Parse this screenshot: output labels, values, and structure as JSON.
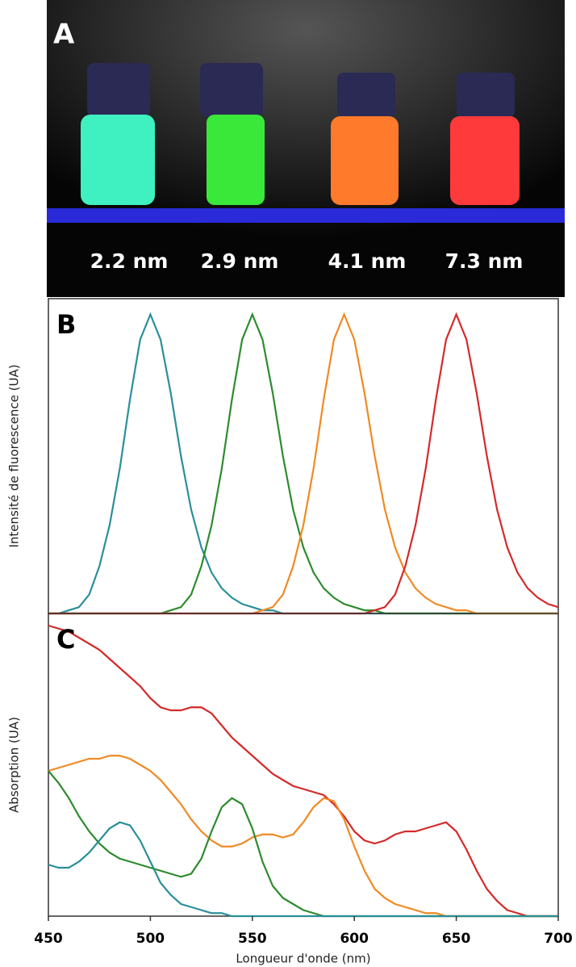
{
  "panel_a": {
    "label": "A",
    "vial_labels": [
      "2.2 nm",
      "2.9 nm",
      "4.1 nm",
      "7.3 nm"
    ]
  },
  "chart_data": [
    {
      "type": "line",
      "panel_label": "B",
      "ylabel": "Intensité de fluorescence (UA)",
      "xlim": [
        450,
        700
      ],
      "ylim": [
        0,
        1
      ],
      "x": [
        450,
        455,
        460,
        465,
        470,
        475,
        480,
        485,
        490,
        495,
        500,
        505,
        510,
        515,
        520,
        525,
        530,
        535,
        540,
        545,
        550,
        555,
        560,
        565,
        570,
        575,
        580,
        585,
        590,
        595,
        600,
        605,
        610,
        615,
        620,
        625,
        630,
        635,
        640,
        645,
        650,
        655,
        660,
        665,
        670,
        675,
        680,
        685,
        690,
        695,
        700
      ],
      "series": [
        {
          "color": "#2a8f9a",
          "values": [
            0,
            0,
            0.01,
            0.02,
            0.06,
            0.15,
            0.28,
            0.46,
            0.68,
            0.87,
            0.95,
            0.87,
            0.7,
            0.5,
            0.33,
            0.21,
            0.13,
            0.08,
            0.05,
            0.03,
            0.02,
            0.01,
            0.01,
            0,
            0,
            0,
            0,
            0,
            0,
            0,
            0,
            0,
            0,
            0,
            0,
            0,
            0,
            0,
            0,
            0,
            0,
            0,
            0,
            0,
            0,
            0,
            0,
            0,
            0,
            0,
            0
          ]
        },
        {
          "color": "#2e8b2e",
          "values": [
            0,
            0,
            0,
            0,
            0,
            0,
            0,
            0,
            0,
            0,
            0,
            0,
            0.01,
            0.02,
            0.06,
            0.15,
            0.28,
            0.46,
            0.68,
            0.87,
            0.95,
            0.87,
            0.7,
            0.5,
            0.33,
            0.21,
            0.13,
            0.08,
            0.05,
            0.03,
            0.02,
            0.01,
            0.01,
            0,
            0,
            0,
            0,
            0,
            0,
            0,
            0,
            0,
            0,
            0,
            0,
            0,
            0,
            0,
            0,
            0,
            0
          ]
        },
        {
          "color": "#f08a24",
          "values": [
            0,
            0,
            0,
            0,
            0,
            0,
            0,
            0,
            0,
            0,
            0,
            0,
            0,
            0,
            0,
            0,
            0,
            0,
            0,
            0,
            0,
            0.01,
            0.02,
            0.06,
            0.15,
            0.28,
            0.46,
            0.68,
            0.87,
            0.95,
            0.87,
            0.7,
            0.5,
            0.33,
            0.21,
            0.13,
            0.08,
            0.05,
            0.03,
            0.02,
            0.01,
            0.01,
            0,
            0,
            0,
            0,
            0,
            0,
            0,
            0,
            0
          ]
        },
        {
          "color": "#d42a2a",
          "values": [
            0,
            0,
            0,
            0,
            0,
            0,
            0,
            0,
            0,
            0,
            0,
            0,
            0,
            0,
            0,
            0,
            0,
            0,
            0,
            0,
            0,
            0,
            0,
            0,
            0,
            0,
            0,
            0,
            0,
            0,
            0,
            0,
            0.01,
            0.02,
            0.06,
            0.15,
            0.28,
            0.46,
            0.68,
            0.87,
            0.95,
            0.87,
            0.7,
            0.5,
            0.33,
            0.21,
            0.13,
            0.08,
            0.05,
            0.03,
            0.02
          ]
        }
      ]
    },
    {
      "type": "line",
      "panel_label": "C",
      "ylabel": "Absorption (UA)",
      "xlabel": "Longueur d'onde (nm)",
      "xlim": [
        450,
        700
      ],
      "ylim": [
        0,
        1
      ],
      "xticks": [
        450,
        500,
        550,
        600,
        650,
        700
      ],
      "x": [
        450,
        455,
        460,
        465,
        470,
        475,
        480,
        485,
        490,
        495,
        500,
        505,
        510,
        515,
        520,
        525,
        530,
        535,
        540,
        545,
        550,
        555,
        560,
        565,
        570,
        575,
        580,
        585,
        590,
        595,
        600,
        605,
        610,
        615,
        620,
        625,
        630,
        635,
        640,
        645,
        650,
        655,
        660,
        665,
        670,
        675,
        680,
        685,
        690,
        695,
        700
      ],
      "series": [
        {
          "color": "#d42a2a",
          "values": [
            0.96,
            0.95,
            0.94,
            0.92,
            0.9,
            0.88,
            0.85,
            0.82,
            0.79,
            0.76,
            0.72,
            0.69,
            0.68,
            0.68,
            0.69,
            0.69,
            0.67,
            0.63,
            0.59,
            0.56,
            0.53,
            0.5,
            0.47,
            0.45,
            0.43,
            0.42,
            0.41,
            0.4,
            0.37,
            0.33,
            0.28,
            0.25,
            0.24,
            0.25,
            0.27,
            0.28,
            0.28,
            0.29,
            0.3,
            0.31,
            0.28,
            0.22,
            0.15,
            0.09,
            0.05,
            0.02,
            0.01,
            0,
            0,
            0,
            0
          ]
        },
        {
          "color": "#f08a24",
          "values": [
            0.48,
            0.49,
            0.5,
            0.51,
            0.52,
            0.52,
            0.53,
            0.53,
            0.52,
            0.5,
            0.48,
            0.45,
            0.41,
            0.37,
            0.32,
            0.28,
            0.25,
            0.23,
            0.23,
            0.24,
            0.26,
            0.27,
            0.27,
            0.26,
            0.27,
            0.31,
            0.36,
            0.39,
            0.38,
            0.32,
            0.23,
            0.15,
            0.09,
            0.06,
            0.04,
            0.03,
            0.02,
            0.01,
            0.01,
            0,
            0,
            0,
            0,
            0,
            0,
            0,
            0,
            0,
            0,
            0,
            0
          ]
        },
        {
          "color": "#2e8b2e",
          "values": [
            0.48,
            0.44,
            0.39,
            0.33,
            0.28,
            0.24,
            0.21,
            0.19,
            0.18,
            0.17,
            0.16,
            0.15,
            0.14,
            0.13,
            0.14,
            0.19,
            0.28,
            0.36,
            0.39,
            0.37,
            0.29,
            0.18,
            0.1,
            0.06,
            0.04,
            0.02,
            0.01,
            0,
            0,
            0,
            0,
            0,
            0,
            0,
            0,
            0,
            0,
            0,
            0,
            0,
            0,
            0,
            0,
            0,
            0,
            0,
            0,
            0,
            0,
            0,
            0
          ]
        },
        {
          "color": "#2a8f9a",
          "values": [
            0.17,
            0.16,
            0.16,
            0.18,
            0.21,
            0.25,
            0.29,
            0.31,
            0.3,
            0.25,
            0.18,
            0.11,
            0.07,
            0.04,
            0.03,
            0.02,
            0.01,
            0.01,
            0,
            0,
            0,
            0,
            0,
            0,
            0,
            0,
            0,
            0,
            0,
            0,
            0,
            0,
            0,
            0,
            0,
            0,
            0,
            0,
            0,
            0,
            0,
            0,
            0,
            0,
            0,
            0,
            0,
            0,
            0,
            0,
            0
          ]
        }
      ]
    }
  ]
}
